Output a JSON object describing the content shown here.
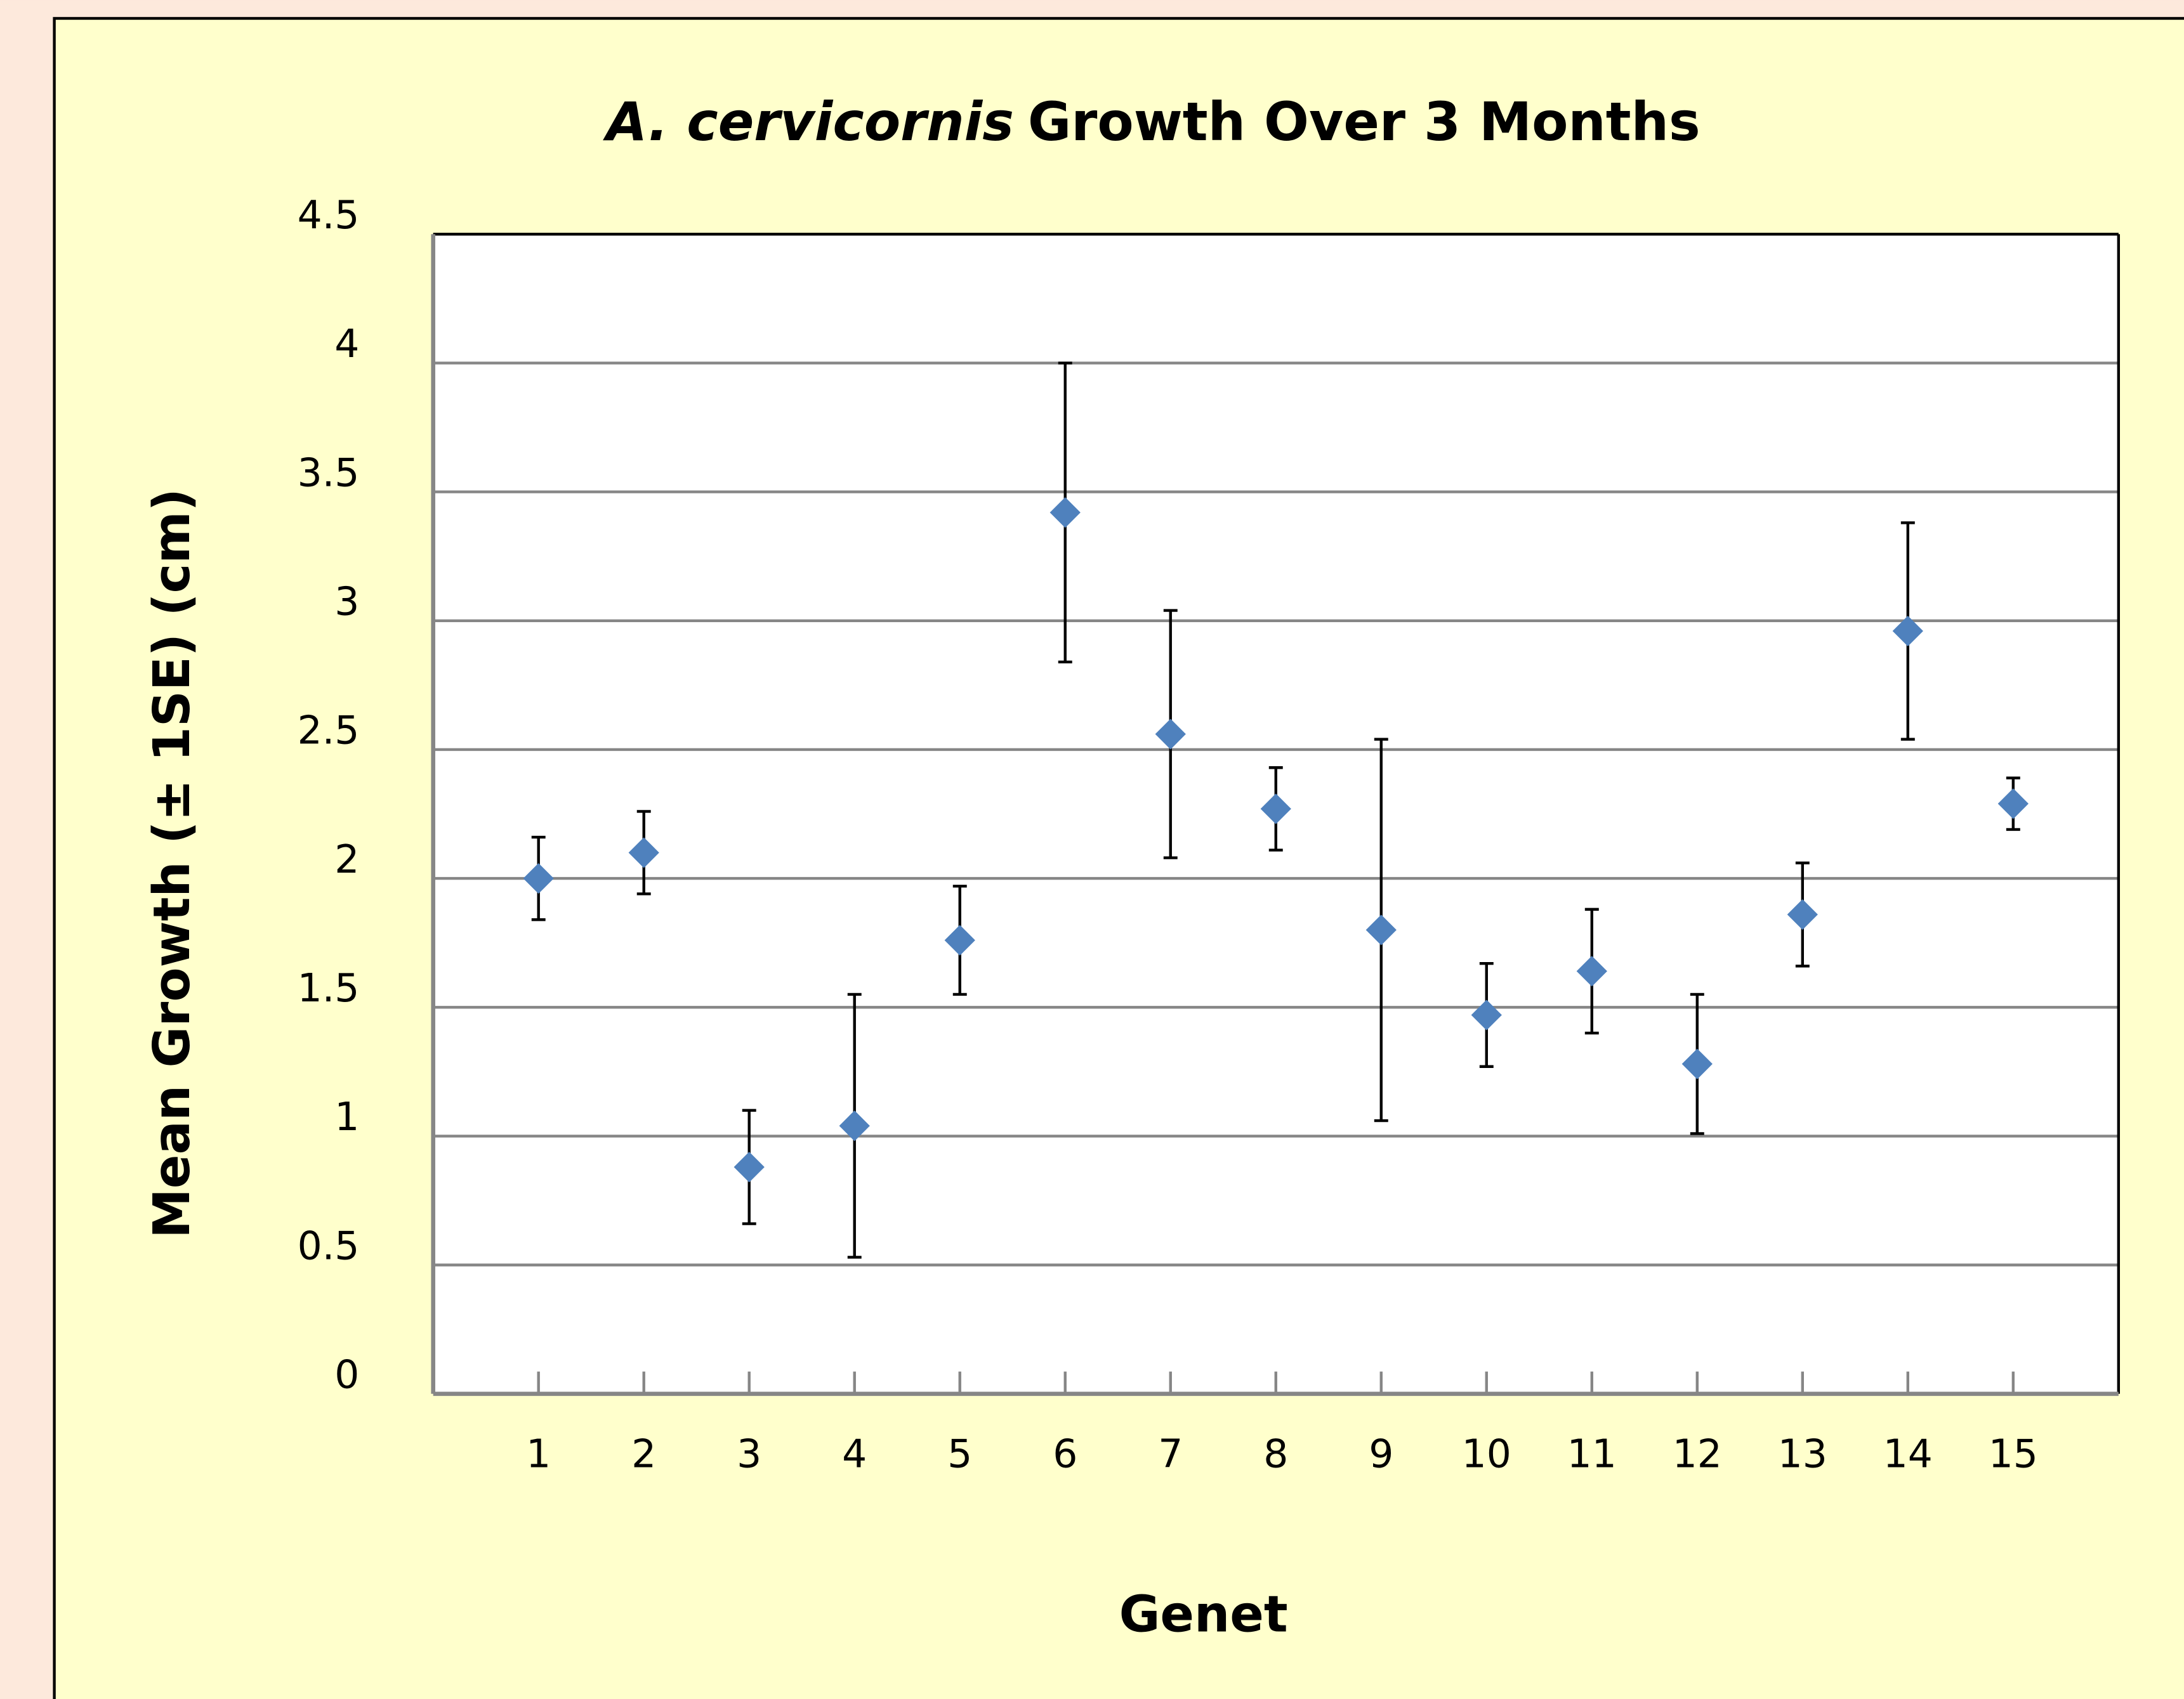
{
  "chart_data": {
    "type": "errorbar",
    "title": [
      "A. cervicornis",
      "Growth Over 3 Months"
    ],
    "xlabel": "Genet",
    "ylabel": "Mean Growth (± 1SE) (cm)",
    "categories": [
      "1",
      "2",
      "3",
      "4",
      "5",
      "6",
      "7",
      "8",
      "9",
      "10",
      "11",
      "12",
      "13",
      "14",
      "15"
    ],
    "values": [
      2.0,
      2.1,
      0.88,
      1.04,
      1.76,
      3.42,
      2.56,
      2.27,
      1.8,
      1.47,
      1.64,
      1.28,
      1.86,
      2.96,
      2.29
    ],
    "errors": [
      0.16,
      0.16,
      0.22,
      0.51,
      0.21,
      0.58,
      0.48,
      0.16,
      0.74,
      0.2,
      0.24,
      0.27,
      0.2,
      0.42,
      0.1
    ],
    "color": "#4f81bd",
    "ylim": [
      0,
      4.5
    ],
    "yticks": [
      0,
      0.5,
      1,
      1.5,
      2,
      2.5,
      3,
      3.5,
      4,
      4.5
    ],
    "grid": true
  }
}
